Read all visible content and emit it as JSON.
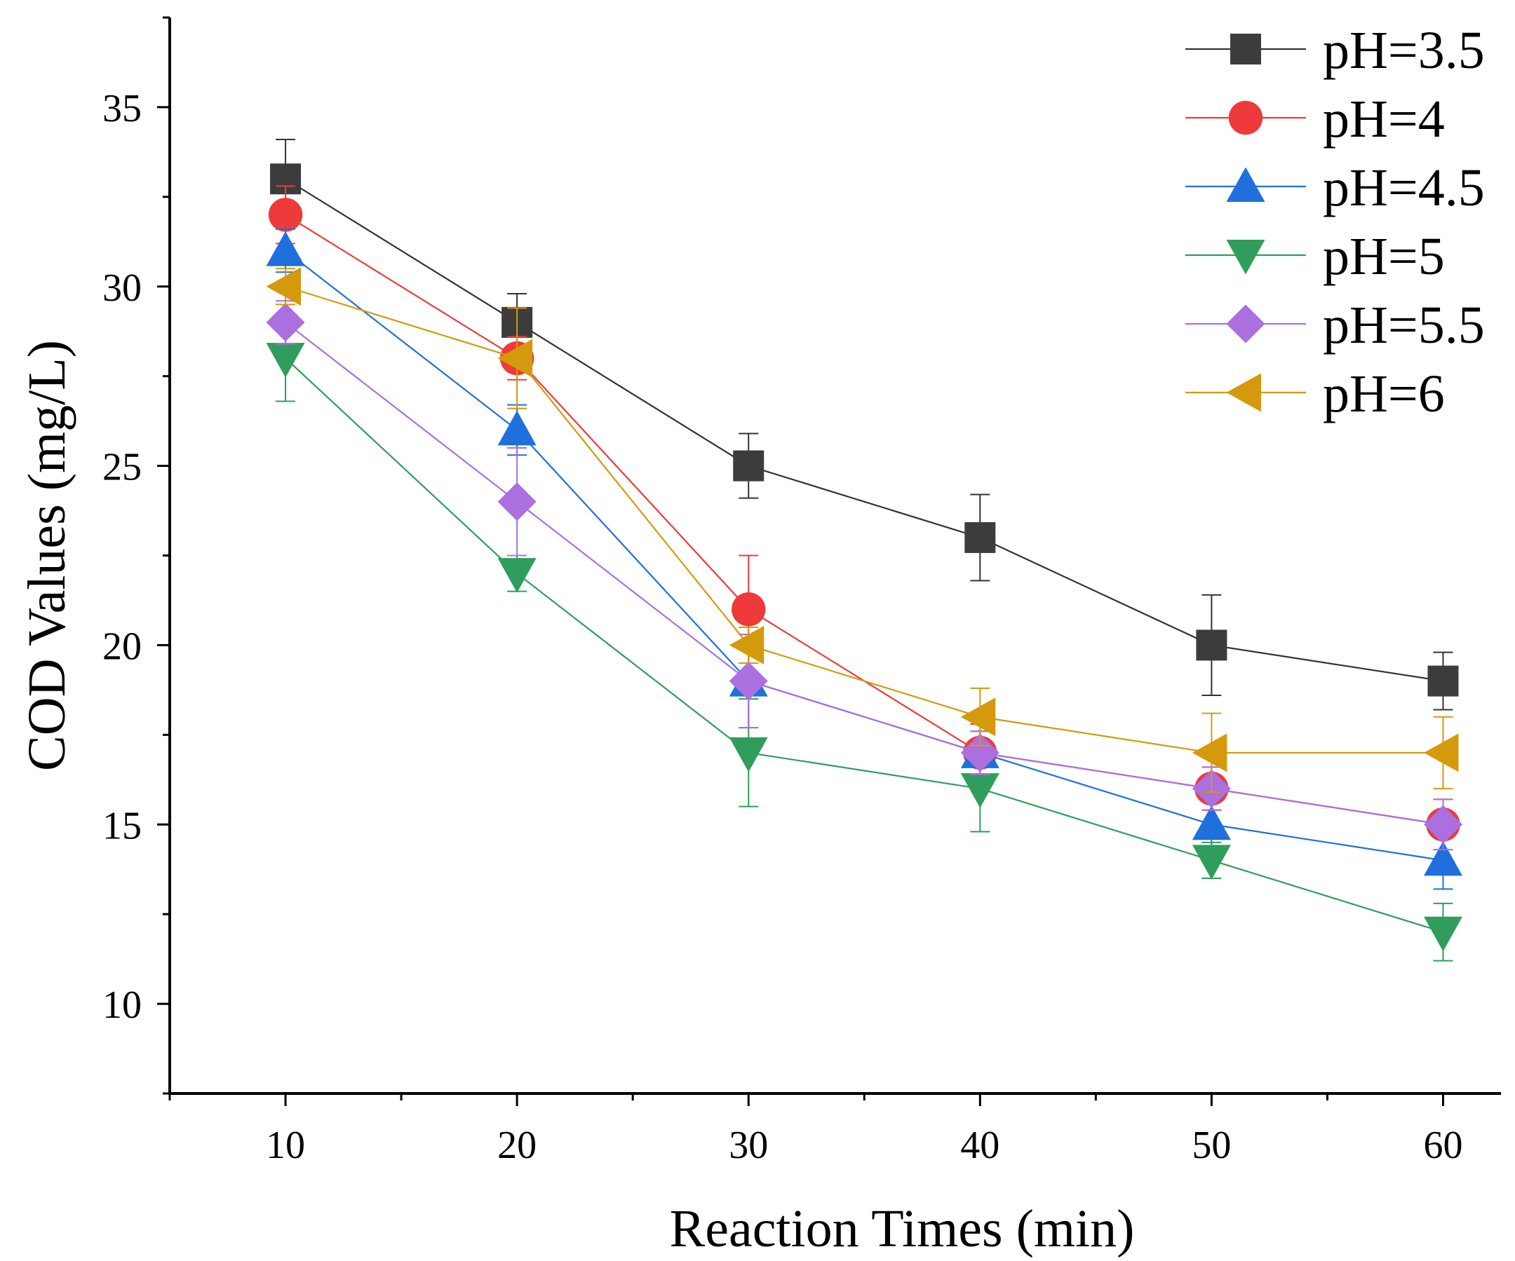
{
  "chart_data": {
    "type": "line",
    "title": "",
    "xlabel": "Reaction Times (min)",
    "ylabel": "COD Values (mg/L)",
    "x": [
      10,
      20,
      30,
      40,
      50,
      60
    ],
    "xlim": [
      5,
      62.5
    ],
    "ylim": [
      7.5,
      37.5
    ],
    "xticks": [
      "10",
      "20",
      "30",
      "40",
      "50",
      "60"
    ],
    "yticks": [
      "10",
      "15",
      "20",
      "25",
      "30",
      "35"
    ],
    "legend_position": "top-right",
    "grid": false,
    "series": [
      {
        "name": "pH=3.5",
        "marker": "square",
        "color": "#3c3c3c",
        "line_color": "#333333",
        "values": [
          33,
          29,
          25,
          23,
          20,
          19
        ],
        "errors": [
          1.1,
          0.8,
          0.9,
          1.2,
          1.4,
          0.8
        ]
      },
      {
        "name": "pH=4",
        "marker": "circle",
        "color": "#ee3a3a",
        "line_color": "#ee3a3a",
        "values": [
          32,
          28,
          21,
          17,
          16,
          15
        ],
        "errors": [
          0.8,
          0.6,
          1.5,
          0.8,
          0.6,
          0.7
        ]
      },
      {
        "name": "pH=4.5",
        "marker": "triangle-up",
        "color": "#1f6fdd",
        "line_color": "#1f6fdd",
        "values": [
          31,
          26,
          19,
          17,
          15,
          14
        ],
        "errors": [
          0.6,
          0.7,
          1.3,
          0.6,
          0.7,
          0.8
        ]
      },
      {
        "name": "pH=5",
        "marker": "triangle-down",
        "color": "#2f9e5c",
        "line_color": "#2f9e5c",
        "values": [
          28,
          22,
          17,
          16,
          14,
          12
        ],
        "errors": [
          1.2,
          0.5,
          1.5,
          1.2,
          0.5,
          0.8
        ]
      },
      {
        "name": "pH=5.5",
        "marker": "diamond",
        "color": "#ab6fe0",
        "line_color": "#ab6fe0",
        "values": [
          29,
          24,
          19,
          17,
          16,
          15
        ],
        "errors": [
          0.6,
          1.5,
          1.3,
          0.6,
          0.6,
          0.7
        ]
      },
      {
        "name": "pH=6",
        "marker": "triangle-left",
        "color": "#d49a0c",
        "line_color": "#d49a0c",
        "values": [
          30,
          28,
          20,
          18,
          17,
          17
        ],
        "errors": [
          0.5,
          1.4,
          0.5,
          0.8,
          1.1,
          1.0
        ]
      }
    ]
  }
}
